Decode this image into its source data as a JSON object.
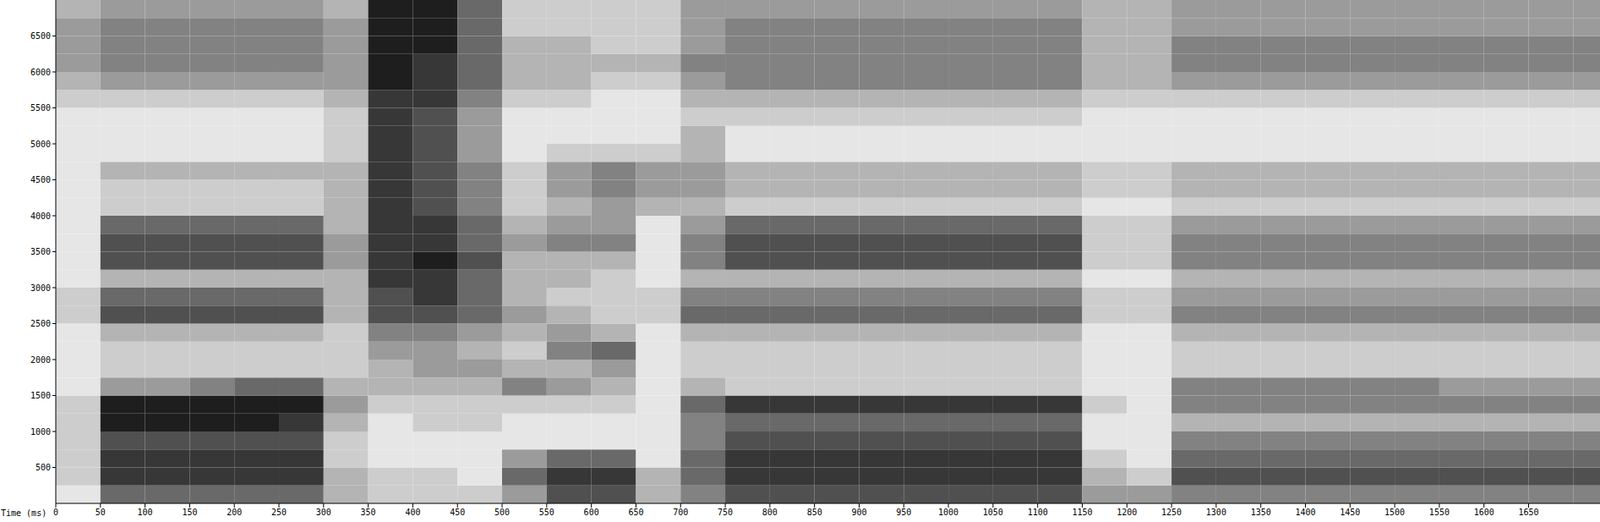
{
  "chart_data": {
    "type": "heatmap",
    "xlabel": "Time (ms)",
    "xlim": [
      0,
      1730
    ],
    "ylim": [
      0,
      7000
    ],
    "xticks": [
      0,
      50,
      100,
      150,
      200,
      250,
      300,
      350,
      400,
      450,
      500,
      550,
      600,
      650,
      700,
      750,
      800,
      850,
      900,
      950,
      1000,
      1050,
      1100,
      1150,
      1200,
      1250,
      1300,
      1350,
      1400,
      1450,
      1500,
      1550,
      1600,
      1650
    ],
    "yticks": [
      500,
      1000,
      1500,
      2000,
      2500,
      3000,
      3500,
      4000,
      4500,
      5000,
      5500,
      6000,
      6500
    ],
    "grid": false,
    "zlim": [
      0,
      9
    ],
    "x_bins": [
      0,
      50,
      100,
      150,
      200,
      250,
      300,
      350,
      400,
      450,
      500,
      550,
      600,
      650,
      700,
      750,
      800,
      850,
      900,
      950,
      1000,
      1050,
      1100,
      1150,
      1200,
      1250,
      1300,
      1350,
      1400,
      1450,
      1500,
      1550,
      1600,
      1650,
      1700,
      1750
    ],
    "y_bins": [
      0,
      250,
      500,
      750,
      1000,
      1250,
      1500,
      1750,
      2000,
      2250,
      2500,
      2750,
      3000,
      3250,
      3500,
      3750,
      4000,
      4250,
      4500,
      4750,
      5000,
      5250,
      5500,
      5750,
      6000,
      6250,
      6500,
      6750,
      7000
    ],
    "cells": [
      [
        1,
        6,
        6,
        6,
        6,
        6,
        3,
        2,
        2,
        2,
        4,
        7,
        7,
        3,
        5,
        7,
        7,
        7,
        7,
        7,
        7,
        7,
        7,
        4,
        4,
        5,
        5,
        5,
        5,
        5,
        5,
        5,
        5,
        5,
        5
      ],
      [
        2,
        8,
        8,
        8,
        8,
        8,
        3,
        2,
        2,
        1,
        6,
        8,
        8,
        3,
        6,
        8,
        8,
        8,
        8,
        8,
        8,
        8,
        8,
        3,
        2,
        7,
        7,
        7,
        7,
        7,
        7,
        7,
        7,
        7,
        7
      ],
      [
        2,
        8,
        8,
        8,
        8,
        8,
        2,
        1,
        1,
        1,
        4,
        6,
        6,
        1,
        6,
        8,
        8,
        8,
        8,
        8,
        8,
        8,
        8,
        2,
        1,
        6,
        6,
        6,
        6,
        6,
        6,
        6,
        6,
        6,
        6
      ],
      [
        2,
        7,
        7,
        7,
        7,
        7,
        2,
        1,
        1,
        1,
        1,
        1,
        1,
        1,
        5,
        7,
        7,
        7,
        7,
        7,
        7,
        7,
        7,
        1,
        1,
        5,
        5,
        5,
        5,
        5,
        5,
        5,
        5,
        5,
        5
      ],
      [
        2,
        9,
        9,
        9,
        9,
        8,
        3,
        1,
        2,
        2,
        1,
        1,
        1,
        1,
        5,
        6,
        6,
        6,
        6,
        6,
        6,
        6,
        6,
        1,
        1,
        3,
        3,
        3,
        3,
        3,
        3,
        3,
        3,
        3,
        3
      ],
      [
        2,
        9,
        9,
        9,
        9,
        9,
        4,
        2,
        2,
        2,
        2,
        2,
        2,
        1,
        6,
        8,
        8,
        8,
        8,
        8,
        8,
        8,
        8,
        2,
        1,
        5,
        5,
        5,
        5,
        5,
        5,
        5,
        5,
        5,
        5
      ],
      [
        1,
        4,
        4,
        5,
        6,
        6,
        3,
        3,
        3,
        3,
        5,
        4,
        3,
        1,
        3,
        2,
        2,
        2,
        2,
        2,
        2,
        2,
        2,
        1,
        1,
        5,
        5,
        5,
        5,
        5,
        5,
        4,
        4,
        4,
        4
      ],
      [
        1,
        2,
        2,
        2,
        2,
        2,
        2,
        3,
        4,
        4,
        3,
        3,
        4,
        1,
        2,
        2,
        2,
        2,
        2,
        2,
        2,
        2,
        2,
        1,
        1,
        2,
        2,
        2,
        2,
        2,
        2,
        2,
        2,
        2,
        2
      ],
      [
        1,
        2,
        2,
        2,
        2,
        2,
        2,
        4,
        4,
        3,
        2,
        5,
        6,
        1,
        2,
        2,
        2,
        2,
        2,
        2,
        2,
        2,
        2,
        1,
        1,
        2,
        2,
        2,
        2,
        2,
        2,
        2,
        2,
        2,
        2
      ],
      [
        1,
        3,
        3,
        3,
        3,
        3,
        2,
        5,
        5,
        4,
        3,
        4,
        3,
        1,
        3,
        3,
        3,
        3,
        3,
        3,
        3,
        3,
        3,
        1,
        1,
        3,
        3,
        3,
        3,
        3,
        3,
        3,
        3,
        3,
        3
      ],
      [
        2,
        7,
        7,
        7,
        7,
        7,
        3,
        7,
        7,
        6,
        4,
        3,
        2,
        2,
        6,
        6,
        6,
        6,
        6,
        6,
        6,
        6,
        6,
        2,
        2,
        5,
        5,
        5,
        5,
        5,
        5,
        5,
        5,
        5,
        5
      ],
      [
        2,
        6,
        6,
        6,
        6,
        6,
        3,
        7,
        8,
        6,
        3,
        2,
        2,
        2,
        5,
        5,
        5,
        5,
        5,
        5,
        5,
        5,
        5,
        2,
        2,
        4,
        4,
        4,
        4,
        4,
        4,
        4,
        4,
        4,
        4
      ],
      [
        1,
        3,
        3,
        3,
        3,
        3,
        3,
        8,
        8,
        6,
        3,
        3,
        2,
        1,
        3,
        3,
        3,
        3,
        3,
        3,
        3,
        3,
        3,
        1,
        1,
        3,
        3,
        3,
        3,
        3,
        3,
        3,
        3,
        3,
        3
      ],
      [
        1,
        7,
        7,
        7,
        7,
        7,
        4,
        8,
        9,
        7,
        3,
        3,
        3,
        1,
        5,
        7,
        7,
        7,
        7,
        7,
        7,
        7,
        7,
        2,
        2,
        5,
        5,
        5,
        5,
        5,
        5,
        5,
        5,
        5,
        5
      ],
      [
        1,
        7,
        7,
        7,
        7,
        7,
        4,
        8,
        8,
        6,
        4,
        5,
        5,
        1,
        5,
        7,
        7,
        7,
        7,
        7,
        7,
        7,
        7,
        2,
        2,
        5,
        5,
        5,
        5,
        5,
        5,
        5,
        5,
        5,
        5
      ],
      [
        1,
        6,
        6,
        6,
        6,
        6,
        3,
        8,
        8,
        6,
        3,
        4,
        4,
        1,
        4,
        6,
        6,
        6,
        6,
        6,
        6,
        6,
        6,
        2,
        2,
        4,
        4,
        4,
        4,
        4,
        4,
        4,
        4,
        4,
        4
      ],
      [
        1,
        2,
        2,
        2,
        2,
        2,
        3,
        8,
        7,
        5,
        2,
        3,
        4,
        3,
        3,
        2,
        2,
        2,
        2,
        2,
        2,
        2,
        2,
        1,
        1,
        2,
        2,
        2,
        2,
        2,
        2,
        2,
        2,
        2,
        2
      ],
      [
        1,
        2,
        2,
        2,
        2,
        2,
        3,
        8,
        7,
        5,
        2,
        4,
        5,
        4,
        4,
        3,
        3,
        3,
        3,
        3,
        3,
        3,
        3,
        2,
        2,
        3,
        3,
        3,
        3,
        3,
        3,
        3,
        3,
        3,
        3
      ],
      [
        1,
        3,
        3,
        3,
        3,
        3,
        3,
        8,
        7,
        5,
        2,
        4,
        5,
        4,
        4,
        3,
        3,
        3,
        3,
        3,
        3,
        3,
        3,
        2,
        2,
        3,
        3,
        3,
        3,
        3,
        3,
        3,
        3,
        3,
        3
      ],
      [
        1,
        1,
        1,
        1,
        1,
        1,
        2,
        8,
        7,
        4,
        1,
        2,
        2,
        2,
        3,
        1,
        1,
        1,
        1,
        1,
        1,
        1,
        1,
        1,
        1,
        1,
        1,
        1,
        1,
        1,
        1,
        1,
        1,
        1,
        1
      ],
      [
        1,
        1,
        1,
        1,
        1,
        1,
        2,
        8,
        7,
        4,
        1,
        1,
        1,
        1,
        3,
        1,
        1,
        1,
        1,
        1,
        1,
        1,
        1,
        1,
        1,
        1,
        1,
        1,
        1,
        1,
        1,
        1,
        1,
        1,
        1
      ],
      [
        1,
        1,
        1,
        1,
        1,
        1,
        2,
        8,
        7,
        4,
        1,
        1,
        1,
        1,
        2,
        2,
        2,
        2,
        2,
        2,
        2,
        2,
        2,
        1,
        1,
        1,
        1,
        1,
        1,
        1,
        1,
        1,
        1,
        1,
        1
      ],
      [
        2,
        2,
        2,
        2,
        2,
        2,
        3,
        8,
        8,
        5,
        2,
        2,
        1,
        1,
        3,
        3,
        3,
        3,
        3,
        3,
        3,
        3,
        3,
        2,
        2,
        2,
        2,
        2,
        2,
        2,
        2,
        2,
        2,
        2,
        2
      ],
      [
        3,
        4,
        4,
        4,
        4,
        4,
        4,
        9,
        8,
        6,
        3,
        3,
        2,
        2,
        4,
        5,
        5,
        5,
        5,
        5,
        5,
        5,
        5,
        3,
        3,
        4,
        4,
        4,
        4,
        4,
        4,
        4,
        4,
        4,
        4
      ],
      [
        4,
        5,
        5,
        5,
        5,
        5,
        4,
        9,
        8,
        6,
        3,
        3,
        3,
        3,
        5,
        5,
        5,
        5,
        5,
        5,
        5,
        5,
        5,
        3,
        3,
        5,
        5,
        5,
        5,
        5,
        5,
        5,
        5,
        5,
        5
      ],
      [
        4,
        5,
        5,
        5,
        5,
        5,
        4,
        9,
        9,
        6,
        3,
        3,
        2,
        2,
        4,
        5,
        5,
        5,
        5,
        5,
        5,
        5,
        5,
        3,
        3,
        5,
        5,
        5,
        5,
        5,
        5,
        5,
        5,
        5,
        5
      ],
      [
        4,
        5,
        5,
        5,
        5,
        5,
        4,
        9,
        9,
        6,
        2,
        2,
        2,
        2,
        4,
        5,
        5,
        5,
        5,
        5,
        5,
        5,
        5,
        3,
        3,
        4,
        4,
        4,
        4,
        4,
        4,
        4,
        4,
        4,
        4
      ],
      [
        3,
        4,
        4,
        4,
        4,
        4,
        3,
        9,
        9,
        6,
        2,
        2,
        2,
        2,
        4,
        4,
        4,
        4,
        4,
        4,
        4,
        4,
        4,
        3,
        3,
        4,
        4,
        4,
        4,
        4,
        4,
        4,
        4,
        4,
        4
      ]
    ]
  }
}
